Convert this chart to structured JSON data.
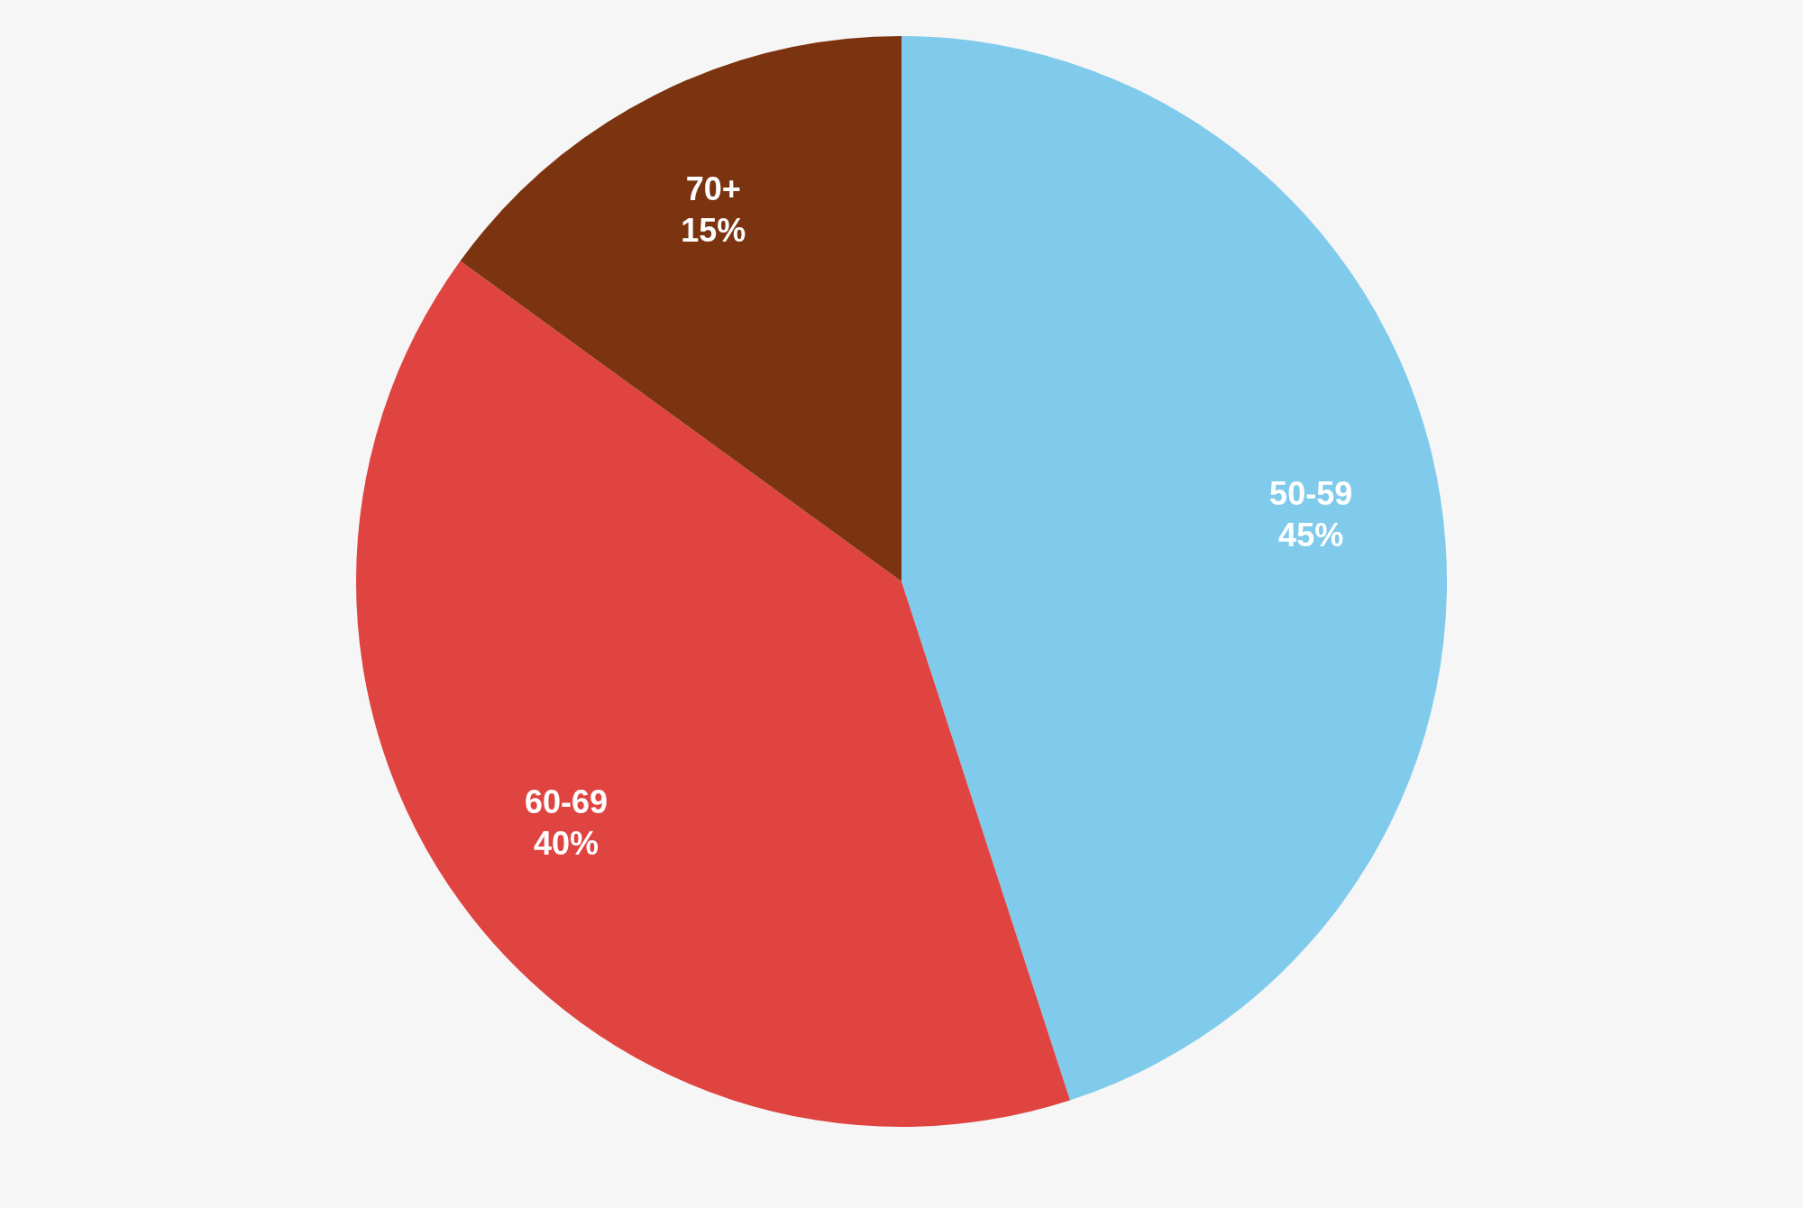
{
  "chart_data": {
    "type": "pie",
    "categories": [
      "50-59",
      "60-69",
      "70+"
    ],
    "values": [
      45,
      40,
      15
    ],
    "value_labels": [
      "45%",
      "40%",
      "15%"
    ],
    "colors": [
      "#80cbec",
      "#df4440",
      "#7c3410"
    ]
  }
}
